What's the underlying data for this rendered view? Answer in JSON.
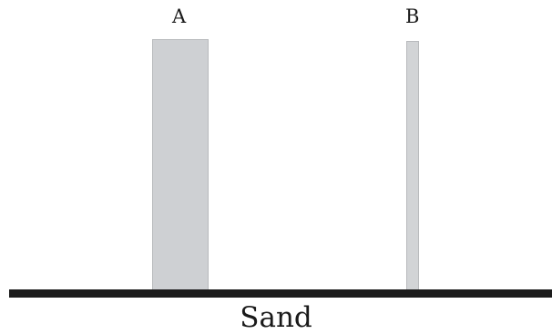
{
  "blocks": [
    {
      "label": "A"
    },
    {
      "label": "B"
    }
  ],
  "surface": {
    "label": "Sand"
  },
  "colors": {
    "block_fill": "#ced0d3",
    "ground": "#1c1c1c"
  }
}
